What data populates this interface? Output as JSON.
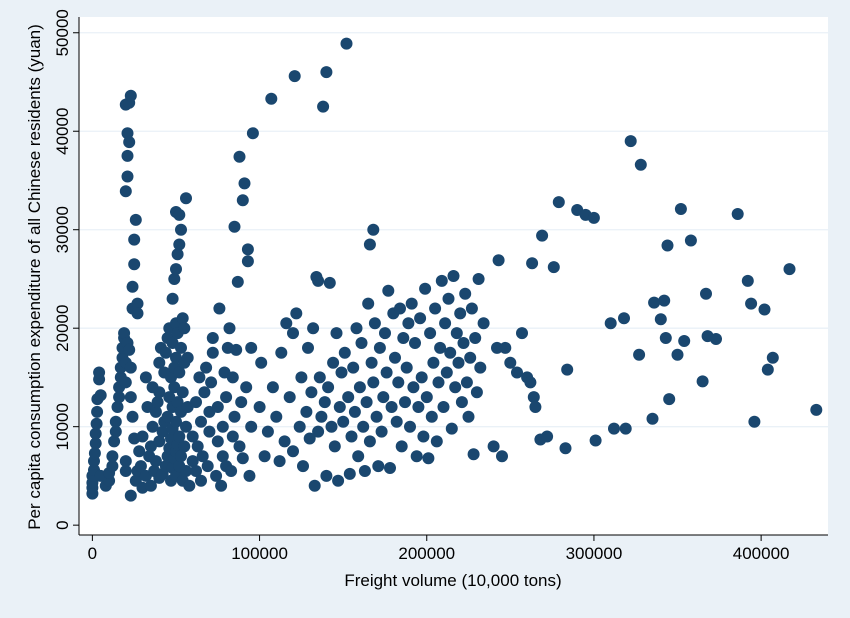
{
  "chart_data": {
    "type": "scatter",
    "title": "",
    "xlabel": "Freight volume (10,000 tons)",
    "ylabel": "Per capita consumption expenditure of all Chinese residents (yuan)",
    "xlim": [
      -8000,
      440000
    ],
    "ylim": [
      -1000,
      51600
    ],
    "xticks": [
      0,
      100000,
      200000,
      300000,
      400000
    ],
    "yticks": [
      0,
      10000,
      20000,
      30000,
      40000,
      50000
    ],
    "xtick_labels": [
      "0",
      "100000",
      "200000",
      "300000",
      "400000"
    ],
    "ytick_labels": [
      "0",
      "10000",
      "20000",
      "30000",
      "40000",
      "50000"
    ],
    "grid": "horizontal",
    "marker_color": "#1a476f",
    "plot_background": "#ffffff",
    "page_background": "#eaf1f7",
    "points": [
      [
        0,
        3200
      ],
      [
        0,
        3800
      ],
      [
        0,
        4300
      ],
      [
        0,
        5000
      ],
      [
        1000,
        5600
      ],
      [
        1000,
        6500
      ],
      [
        1500,
        7300
      ],
      [
        2000,
        8300
      ],
      [
        2000,
        9300
      ],
      [
        2500,
        10300
      ],
      [
        2800,
        11500
      ],
      [
        3000,
        12800
      ],
      [
        4000,
        14800
      ],
      [
        4000,
        15500
      ],
      [
        5000,
        5000
      ],
      [
        5000,
        13200
      ],
      [
        8000,
        4000
      ],
      [
        10000,
        4500
      ],
      [
        10000,
        5300
      ],
      [
        12000,
        6000
      ],
      [
        12000,
        7000
      ],
      [
        13000,
        8500
      ],
      [
        14000,
        9500
      ],
      [
        14000,
        10500
      ],
      [
        15000,
        12000
      ],
      [
        16000,
        13000
      ],
      [
        16000,
        14000
      ],
      [
        17000,
        15000
      ],
      [
        17000,
        16000
      ],
      [
        18000,
        17000
      ],
      [
        18000,
        18000
      ],
      [
        19000,
        19000
      ],
      [
        19000,
        19500
      ],
      [
        20000,
        5500
      ],
      [
        20000,
        6500
      ],
      [
        20000,
        14500
      ],
      [
        20000,
        16500
      ],
      [
        21000,
        18500
      ],
      [
        20000,
        42700
      ],
      [
        21000,
        37500
      ],
      [
        21000,
        35400
      ],
      [
        20000,
        33900
      ],
      [
        21000,
        39800
      ],
      [
        22000,
        38900
      ],
      [
        22000,
        42900
      ],
      [
        23000,
        43600
      ],
      [
        23000,
        3000
      ],
      [
        24000,
        24200
      ],
      [
        24000,
        22000
      ],
      [
        25000,
        26500
      ],
      [
        25000,
        29000
      ],
      [
        26000,
        31000
      ],
      [
        27000,
        22500
      ],
      [
        27000,
        21500
      ],
      [
        22000,
        17800
      ],
      [
        23000,
        16000
      ],
      [
        23000,
        13000
      ],
      [
        24000,
        11000
      ],
      [
        25000,
        8800
      ],
      [
        26000,
        4500
      ],
      [
        27000,
        5500
      ],
      [
        28000,
        7500
      ],
      [
        29000,
        6000
      ],
      [
        30000,
        9000
      ],
      [
        30000,
        3800
      ],
      [
        32000,
        5000
      ],
      [
        32000,
        15000
      ],
      [
        33000,
        12000
      ],
      [
        34000,
        7000
      ],
      [
        35000,
        8000
      ],
      [
        35000,
        4000
      ],
      [
        36000,
        10000
      ],
      [
        36000,
        14000
      ],
      [
        37000,
        5500
      ],
      [
        38000,
        6500
      ],
      [
        38000,
        11500
      ],
      [
        39000,
        12500
      ],
      [
        40000,
        4800
      ],
      [
        40000,
        8500
      ],
      [
        40000,
        13500
      ],
      [
        40000,
        16500
      ],
      [
        41000,
        18000
      ],
      [
        42000,
        5200
      ],
      [
        42000,
        9500
      ],
      [
        43000,
        10500
      ],
      [
        43000,
        15500
      ],
      [
        44000,
        6000
      ],
      [
        44000,
        17500
      ],
      [
        45000,
        7000
      ],
      [
        45000,
        11000
      ],
      [
        45000,
        19000
      ],
      [
        46000,
        7800
      ],
      [
        46000,
        13000
      ],
      [
        46000,
        20000
      ],
      [
        47000,
        4500
      ],
      [
        47000,
        8800
      ],
      [
        47000,
        15000
      ],
      [
        48000,
        5800
      ],
      [
        48000,
        9800
      ],
      [
        48000,
        12000
      ],
      [
        48000,
        18500
      ],
      [
        48000,
        23000
      ],
      [
        49000,
        6800
      ],
      [
        49000,
        14000
      ],
      [
        49000,
        16000
      ],
      [
        49000,
        25000
      ],
      [
        50000,
        5000
      ],
      [
        50000,
        7500
      ],
      [
        50000,
        10500
      ],
      [
        50000,
        17000
      ],
      [
        50000,
        20500
      ],
      [
        50000,
        26000
      ],
      [
        50000,
        31800
      ],
      [
        51000,
        8200
      ],
      [
        51000,
        12500
      ],
      [
        51000,
        19500
      ],
      [
        51000,
        27500
      ],
      [
        52000,
        6000
      ],
      [
        52000,
        9000
      ],
      [
        52000,
        15500
      ],
      [
        52000,
        28500
      ],
      [
        52000,
        31500
      ],
      [
        53000,
        7000
      ],
      [
        53000,
        11500
      ],
      [
        53000,
        18000
      ],
      [
        53000,
        30000
      ],
      [
        54000,
        4500
      ],
      [
        54000,
        13500
      ],
      [
        54000,
        21000
      ],
      [
        55000,
        8000
      ],
      [
        55000,
        16500
      ],
      [
        55000,
        20000
      ],
      [
        56000,
        5500
      ],
      [
        56000,
        10000
      ],
      [
        56000,
        33200
      ],
      [
        57000,
        12000
      ],
      [
        57000,
        17000
      ],
      [
        58000,
        4000
      ],
      [
        60000,
        6500
      ],
      [
        60000,
        9000
      ],
      [
        62000,
        5500
      ],
      [
        62000,
        12500
      ],
      [
        63000,
        8000
      ],
      [
        64000,
        15000
      ],
      [
        65000,
        4500
      ],
      [
        65000,
        10500
      ],
      [
        66000,
        7000
      ],
      [
        67000,
        13500
      ],
      [
        68000,
        16000
      ],
      [
        69000,
        6000
      ],
      [
        70000,
        9500
      ],
      [
        70000,
        11500
      ],
      [
        71000,
        14500
      ],
      [
        72000,
        17500
      ],
      [
        72000,
        19000
      ],
      [
        74000,
        5000
      ],
      [
        75000,
        8500
      ],
      [
        75000,
        12000
      ],
      [
        76000,
        22000
      ],
      [
        77000,
        4000
      ],
      [
        78000,
        7000
      ],
      [
        78000,
        10000
      ],
      [
        79000,
        15500
      ],
      [
        80000,
        6000
      ],
      [
        80000,
        13000
      ],
      [
        81000,
        18000
      ],
      [
        82000,
        20000
      ],
      [
        83000,
        5500
      ],
      [
        84000,
        9000
      ],
      [
        84000,
        15000
      ],
      [
        85000,
        11000
      ],
      [
        85000,
        30300
      ],
      [
        86000,
        17800
      ],
      [
        87000,
        24700
      ],
      [
        88000,
        8000
      ],
      [
        88000,
        37400
      ],
      [
        89000,
        12500
      ],
      [
        90000,
        6800
      ],
      [
        90000,
        33000
      ],
      [
        91000,
        34700
      ],
      [
        92000,
        14000
      ],
      [
        93000,
        26800
      ],
      [
        93000,
        28000
      ],
      [
        94000,
        5000
      ],
      [
        95000,
        10000
      ],
      [
        95000,
        18000
      ],
      [
        96000,
        39800
      ],
      [
        100000,
        12000
      ],
      [
        101000,
        16500
      ],
      [
        103000,
        7000
      ],
      [
        105000,
        9500
      ],
      [
        107000,
        43300
      ],
      [
        108000,
        14000
      ],
      [
        110000,
        11000
      ],
      [
        112000,
        6500
      ],
      [
        113000,
        17500
      ],
      [
        115000,
        8500
      ],
      [
        116000,
        20500
      ],
      [
        118000,
        13000
      ],
      [
        120000,
        7500
      ],
      [
        120000,
        19500
      ],
      [
        121000,
        45600
      ],
      [
        122000,
        21500
      ],
      [
        124000,
        10000
      ],
      [
        125000,
        15000
      ],
      [
        126000,
        6000
      ],
      [
        128000,
        11500
      ],
      [
        129000,
        18000
      ],
      [
        130000,
        8800
      ],
      [
        131000,
        13500
      ],
      [
        132000,
        20000
      ],
      [
        133000,
        4000
      ],
      [
        134000,
        25200
      ],
      [
        135000,
        9500
      ],
      [
        135000,
        24800
      ],
      [
        136000,
        15000
      ],
      [
        137000,
        11000
      ],
      [
        138000,
        42500
      ],
      [
        139000,
        12500
      ],
      [
        140000,
        46000
      ],
      [
        140000,
        5000
      ],
      [
        141000,
        14000
      ],
      [
        142000,
        24600
      ],
      [
        143000,
        10000
      ],
      [
        144000,
        16500
      ],
      [
        145000,
        8000
      ],
      [
        146000,
        19500
      ],
      [
        147000,
        4500
      ],
      [
        148000,
        12000
      ],
      [
        149000,
        15500
      ],
      [
        150000,
        10500
      ],
      [
        151000,
        17500
      ],
      [
        152000,
        48900
      ],
      [
        153000,
        13000
      ],
      [
        154000,
        5200
      ],
      [
        155000,
        9000
      ],
      [
        156000,
        16000
      ],
      [
        157000,
        11500
      ],
      [
        158000,
        20000
      ],
      [
        159000,
        7000
      ],
      [
        160000,
        14000
      ],
      [
        161000,
        18500
      ],
      [
        162000,
        10000
      ],
      [
        163000,
        5500
      ],
      [
        164000,
        12500
      ],
      [
        165000,
        22500
      ],
      [
        166000,
        28500
      ],
      [
        166000,
        8500
      ],
      [
        167000,
        16500
      ],
      [
        168000,
        30000
      ],
      [
        168000,
        14500
      ],
      [
        169000,
        20500
      ],
      [
        170000,
        11000
      ],
      [
        171000,
        6000
      ],
      [
        172000,
        18000
      ],
      [
        173000,
        9500
      ],
      [
        174000,
        13000
      ],
      [
        175000,
        19500
      ],
      [
        176000,
        15500
      ],
      [
        177000,
        23800
      ],
      [
        178000,
        5800
      ],
      [
        179000,
        12000
      ],
      [
        180000,
        21500
      ],
      [
        181000,
        17000
      ],
      [
        182000,
        10500
      ],
      [
        183000,
        14500
      ],
      [
        184000,
        22000
      ],
      [
        185000,
        8000
      ],
      [
        186000,
        19000
      ],
      [
        187000,
        12500
      ],
      [
        188000,
        16000
      ],
      [
        189000,
        20500
      ],
      [
        190000,
        10000
      ],
      [
        191000,
        22500
      ],
      [
        192000,
        14000
      ],
      [
        193000,
        18500
      ],
      [
        194000,
        7000
      ],
      [
        195000,
        12000
      ],
      [
        196000,
        21000
      ],
      [
        197000,
        15000
      ],
      [
        198000,
        9000
      ],
      [
        199000,
        24000
      ],
      [
        200000,
        13000
      ],
      [
        201000,
        6800
      ],
      [
        202000,
        19500
      ],
      [
        203000,
        11000
      ],
      [
        204000,
        16500
      ],
      [
        205000,
        22000
      ],
      [
        206000,
        8500
      ],
      [
        207000,
        14500
      ],
      [
        208000,
        18000
      ],
      [
        209000,
        24800
      ],
      [
        210000,
        12000
      ],
      [
        211000,
        20500
      ],
      [
        212000,
        15500
      ],
      [
        213000,
        23000
      ],
      [
        214000,
        17500
      ],
      [
        215000,
        9800
      ],
      [
        216000,
        25300
      ],
      [
        217000,
        14000
      ],
      [
        218000,
        19500
      ],
      [
        219000,
        16500
      ],
      [
        220000,
        21500
      ],
      [
        221000,
        12500
      ],
      [
        222000,
        18500
      ],
      [
        223000,
        23500
      ],
      [
        224000,
        14500
      ],
      [
        225000,
        11000
      ],
      [
        226000,
        17000
      ],
      [
        227000,
        22000
      ],
      [
        228000,
        7200
      ],
      [
        229000,
        19000
      ],
      [
        230000,
        13500
      ],
      [
        231000,
        25000
      ],
      [
        232000,
        16000
      ],
      [
        234000,
        20500
      ],
      [
        240000,
        8000
      ],
      [
        242000,
        18000
      ],
      [
        243000,
        26900
      ],
      [
        245000,
        7000
      ],
      [
        247000,
        18000
      ],
      [
        250000,
        16500
      ],
      [
        254000,
        15500
      ],
      [
        257000,
        19500
      ],
      [
        260000,
        15000
      ],
      [
        262000,
        14500
      ],
      [
        263000,
        26600
      ],
      [
        264000,
        13000
      ],
      [
        265000,
        12000
      ],
      [
        268000,
        8700
      ],
      [
        269000,
        29400
      ],
      [
        272000,
        9000
      ],
      [
        276000,
        26200
      ],
      [
        279000,
        32800
      ],
      [
        283000,
        7800
      ],
      [
        284000,
        15800
      ],
      [
        290000,
        32000
      ],
      [
        295000,
        31500
      ],
      [
        300000,
        31200
      ],
      [
        301000,
        8600
      ],
      [
        310000,
        20500
      ],
      [
        312000,
        9800
      ],
      [
        318000,
        21000
      ],
      [
        319000,
        9800
      ],
      [
        322000,
        39000
      ],
      [
        327000,
        17300
      ],
      [
        328000,
        36600
      ],
      [
        335000,
        10800
      ],
      [
        336000,
        22600
      ],
      [
        340000,
        20900
      ],
      [
        342000,
        22800
      ],
      [
        343000,
        19000
      ],
      [
        344000,
        28400
      ],
      [
        345000,
        12800
      ],
      [
        350000,
        17300
      ],
      [
        352000,
        32100
      ],
      [
        354000,
        18700
      ],
      [
        358000,
        28900
      ],
      [
        365000,
        14600
      ],
      [
        367000,
        23500
      ],
      [
        368000,
        19200
      ],
      [
        373000,
        18900
      ],
      [
        386000,
        31600
      ],
      [
        392000,
        24800
      ],
      [
        394000,
        22500
      ],
      [
        396000,
        10500
      ],
      [
        402000,
        21900
      ],
      [
        404000,
        15800
      ],
      [
        407000,
        17000
      ],
      [
        417000,
        26000
      ],
      [
        433000,
        11700
      ]
    ]
  }
}
